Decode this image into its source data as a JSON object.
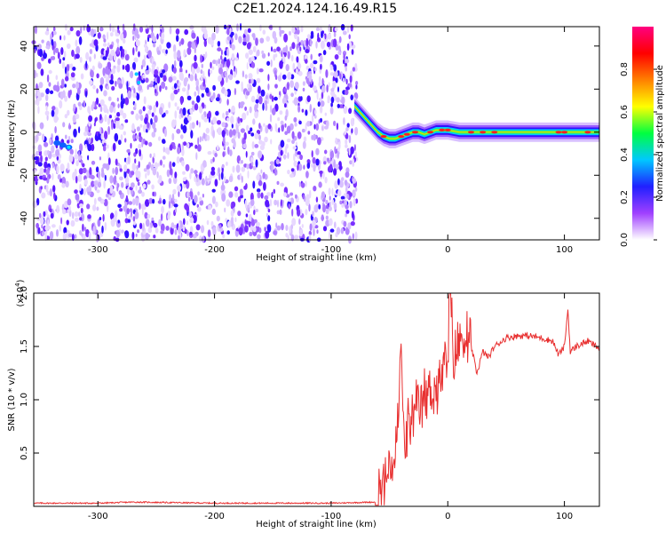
{
  "chart_data": [
    {
      "type": "heatmap",
      "title": "C2E1.2024.124.16.49.R15",
      "xlabel": "Height of straight line (km)",
      "ylabel": "Frequency (Hz)",
      "xlim": [
        -355,
        130
      ],
      "ylim": [
        -50,
        49
      ],
      "xticks": [
        "-300",
        "-200",
        "-100",
        "0",
        "100"
      ],
      "xtick_values": [
        -300,
        -200,
        -100,
        0,
        100
      ],
      "yticks": [
        "40",
        "20",
        "0",
        "-20",
        "-40"
      ],
      "ytick_values": [
        40,
        20,
        0,
        -20,
        -40
      ],
      "noise_region_x": [
        -355,
        -78
      ],
      "signal_x": [
        -80,
        -75,
        -70,
        -65,
        -60,
        -55,
        -50,
        -45,
        -40,
        -35,
        -30,
        -25,
        -20,
        -15,
        -10,
        -5,
        0,
        10,
        20,
        40,
        60,
        80,
        100,
        130
      ],
      "signal_freq_hz": [
        12,
        9,
        6,
        3,
        0,
        -2,
        -3,
        -3,
        -2,
        -1,
        0,
        0,
        -1,
        0,
        1,
        1,
        1,
        0,
        0,
        0,
        0,
        0,
        0,
        0
      ],
      "colorbar": {
        "label": "Normalized spectral amplitude",
        "range": [
          0,
          1
        ],
        "ticks": [
          "0.0",
          "0.2",
          "0.4",
          "0.6",
          "0.8"
        ],
        "tick_values": [
          0,
          0.2,
          0.4,
          0.6,
          0.8
        ],
        "colors": [
          "#ffffff",
          "#a040ff",
          "#2020ff",
          "#00c8ff",
          "#00ff40",
          "#ffff00",
          "#ff8000",
          "#ff0000",
          "#ff0080"
        ]
      }
    },
    {
      "type": "line",
      "xlabel": "Height of straight line (km)",
      "ylabel": "SNR (10 * v/v)",
      "y_multiplier": "(x10",
      "y_multiplier_exp": "4",
      "y_multiplier_close": ")",
      "xlim": [
        -355,
        130
      ],
      "ylim": [
        0,
        2.0
      ],
      "xticks": [
        "-300",
        "-200",
        "-100",
        "0",
        "100"
      ],
      "xtick_values": [
        -300,
        -200,
        -100,
        0,
        100
      ],
      "yticks": [
        "2.0",
        "1.5",
        "1.0",
        "0.5"
      ],
      "ytick_values": [
        2.0,
        1.5,
        1.0,
        0.5
      ],
      "series_color": "#e83030",
      "x": [
        -355,
        -300,
        -270,
        -200,
        -150,
        -100,
        -62,
        -55,
        -50,
        -45,
        -42,
        -40,
        -38,
        -35,
        -30,
        -25,
        -20,
        -15,
        -10,
        -5,
        0,
        2,
        5,
        10,
        15,
        20,
        25,
        30,
        35,
        40,
        50,
        60,
        70,
        80,
        90,
        95,
        100,
        103,
        105,
        110,
        120,
        130
      ],
      "values": [
        0.03,
        0.03,
        0.04,
        0.03,
        0.03,
        0.03,
        0.04,
        0.2,
        0.35,
        0.45,
        0.9,
        1.6,
        0.6,
        0.7,
        0.8,
        0.9,
        1.0,
        1.1,
        1.1,
        1.2,
        1.4,
        2.0,
        1.35,
        1.55,
        1.6,
        1.5,
        1.25,
        1.45,
        1.4,
        1.5,
        1.58,
        1.6,
        1.6,
        1.58,
        1.55,
        1.42,
        1.5,
        1.85,
        1.45,
        1.5,
        1.55,
        1.48
      ]
    }
  ]
}
